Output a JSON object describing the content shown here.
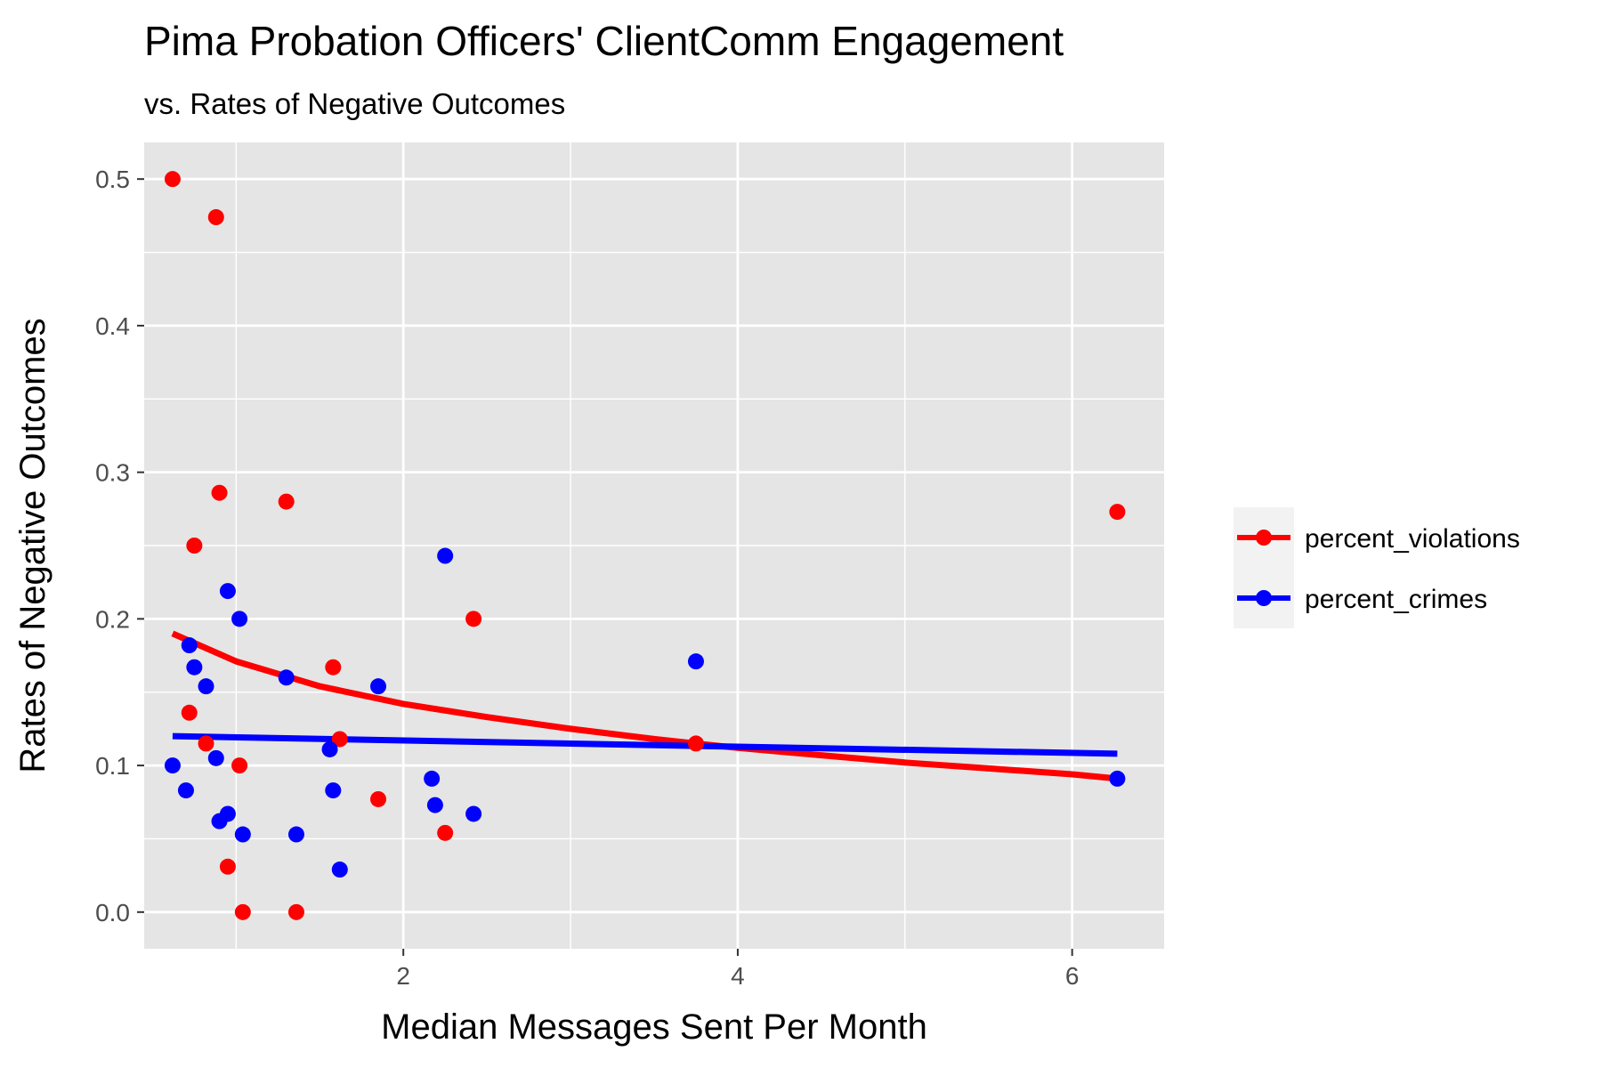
{
  "chart_data": {
    "type": "scatter",
    "title": "Pima Probation Officers' ClientComm Engagement",
    "subtitle": "vs. Rates of Negative Outcomes",
    "xlabel": "Median Messages Sent Per Month",
    "ylabel": "Rates of Negative Outcomes",
    "xlim": [
      0.45,
      6.55
    ],
    "ylim": [
      -0.025,
      0.525
    ],
    "x_ticks": [
      2,
      4,
      6
    ],
    "x_tick_labels": [
      "2",
      "4",
      "6"
    ],
    "y_ticks": [
      0.0,
      0.1,
      0.2,
      0.3,
      0.4,
      0.5
    ],
    "y_tick_labels": [
      "0.0",
      "0.1",
      "0.2",
      "0.3",
      "0.4",
      "0.5"
    ],
    "grid": true,
    "legend_position": "right",
    "series": [
      {
        "name": "percent_violations",
        "color": "#ff0000",
        "points": [
          {
            "x": 0.62,
            "y": 0.5
          },
          {
            "x": 0.88,
            "y": 0.474
          },
          {
            "x": 0.9,
            "y": 0.286
          },
          {
            "x": 1.3,
            "y": 0.28
          },
          {
            "x": 0.75,
            "y": 0.25
          },
          {
            "x": 2.42,
            "y": 0.2
          },
          {
            "x": 1.58,
            "y": 0.167
          },
          {
            "x": 0.72,
            "y": 0.136
          },
          {
            "x": 1.62,
            "y": 0.118
          },
          {
            "x": 0.82,
            "y": 0.115
          },
          {
            "x": 3.75,
            "y": 0.115
          },
          {
            "x": 1.02,
            "y": 0.1
          },
          {
            "x": 1.85,
            "y": 0.077
          },
          {
            "x": 2.25,
            "y": 0.054
          },
          {
            "x": 0.95,
            "y": 0.031
          },
          {
            "x": 1.04,
            "y": 0.0
          },
          {
            "x": 1.36,
            "y": 0.0
          },
          {
            "x": 6.27,
            "y": 0.273
          }
        ],
        "trend": {
          "x": [
            0.62,
            1.0,
            1.5,
            2.0,
            2.5,
            3.0,
            3.5,
            4.0,
            4.5,
            5.0,
            5.5,
            6.0,
            6.27
          ],
          "y": [
            0.19,
            0.171,
            0.154,
            0.142,
            0.133,
            0.125,
            0.118,
            0.112,
            0.107,
            0.102,
            0.098,
            0.094,
            0.091
          ]
        }
      },
      {
        "name": "percent_crimes",
        "color": "#0000ff",
        "points": [
          {
            "x": 2.25,
            "y": 0.243
          },
          {
            "x": 0.95,
            "y": 0.219
          },
          {
            "x": 1.02,
            "y": 0.2
          },
          {
            "x": 0.72,
            "y": 0.182
          },
          {
            "x": 3.75,
            "y": 0.171
          },
          {
            "x": 0.75,
            "y": 0.167
          },
          {
            "x": 1.3,
            "y": 0.16
          },
          {
            "x": 0.82,
            "y": 0.154
          },
          {
            "x": 1.85,
            "y": 0.154
          },
          {
            "x": 1.56,
            "y": 0.111
          },
          {
            "x": 0.88,
            "y": 0.105
          },
          {
            "x": 0.62,
            "y": 0.1
          },
          {
            "x": 2.17,
            "y": 0.091
          },
          {
            "x": 6.27,
            "y": 0.091
          },
          {
            "x": 0.7,
            "y": 0.083
          },
          {
            "x": 1.58,
            "y": 0.083
          },
          {
            "x": 2.19,
            "y": 0.073
          },
          {
            "x": 0.95,
            "y": 0.067
          },
          {
            "x": 2.42,
            "y": 0.067
          },
          {
            "x": 0.9,
            "y": 0.062
          },
          {
            "x": 1.04,
            "y": 0.053
          },
          {
            "x": 1.36,
            "y": 0.053
          },
          {
            "x": 1.62,
            "y": 0.029
          }
        ],
        "trend": {
          "x": [
            0.62,
            6.27
          ],
          "y": [
            0.12,
            0.108
          ]
        }
      }
    ]
  }
}
